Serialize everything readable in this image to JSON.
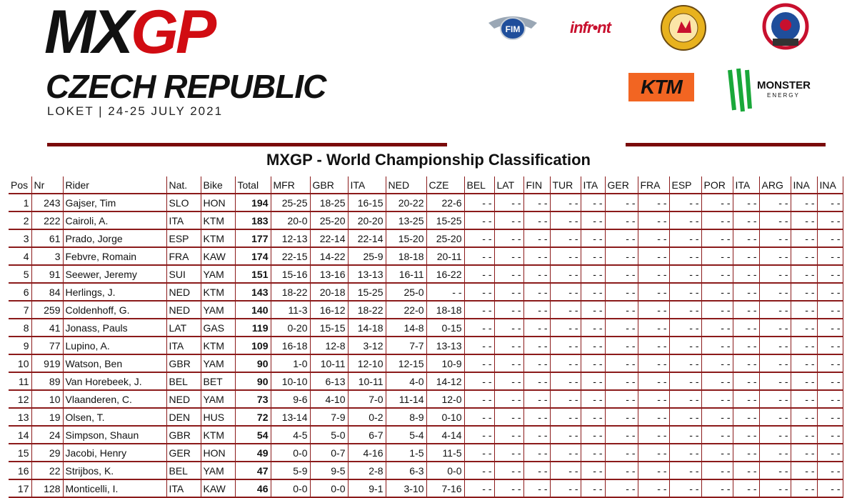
{
  "header": {
    "logo_mx": "MX",
    "logo_gp": "GP",
    "event_title": "CZECH REPUBLIC",
    "event_subtitle": "LOKET | 24-25 JULY 2021",
    "sponsors": [
      "FIM",
      "infront",
      "KTM",
      "Monster Energy"
    ],
    "sponsor_text": {
      "fim": "FIM",
      "infront": "infr•nt",
      "ktm": "KTM",
      "monster": "MONSTER",
      "energy": "ENERGY"
    }
  },
  "table": {
    "title": "MXGP - World Championship Classification",
    "columns": [
      "Pos",
      "Nr",
      "Rider",
      "Nat.",
      "Bike",
      "Total",
      "MFR",
      "GBR",
      "ITA",
      "NED",
      "CZE",
      "BEL",
      "LAT",
      "FIN",
      "TUR",
      "ITA",
      "GER",
      "FRA",
      "ESP",
      "POR",
      "ITA",
      "ARG",
      "INA",
      "INA"
    ],
    "rows": [
      {
        "pos": "1",
        "nr": "243",
        "rider": "Gajser, Tim",
        "nat": "SLO",
        "bike": "HON",
        "total": "194",
        "scores": [
          "25-25",
          "18-25",
          "16-15",
          "20-22",
          "22-6"
        ]
      },
      {
        "pos": "2",
        "nr": "222",
        "rider": "Cairoli, A.",
        "nat": "ITA",
        "bike": "KTM",
        "total": "183",
        "scores": [
          "20-0",
          "25-20",
          "20-20",
          "13-25",
          "15-25"
        ]
      },
      {
        "pos": "3",
        "nr": "61",
        "rider": "Prado, Jorge",
        "nat": "ESP",
        "bike": "KTM",
        "total": "177",
        "scores": [
          "12-13",
          "22-14",
          "22-14",
          "15-20",
          "25-20"
        ]
      },
      {
        "pos": "4",
        "nr": "3",
        "rider": "Febvre, Romain",
        "nat": "FRA",
        "bike": "KAW",
        "total": "174",
        "scores": [
          "22-15",
          "14-22",
          "25-9",
          "18-18",
          "20-11"
        ]
      },
      {
        "pos": "5",
        "nr": "91",
        "rider": "Seewer, Jeremy",
        "nat": "SUI",
        "bike": "YAM",
        "total": "151",
        "scores": [
          "15-16",
          "13-16",
          "13-13",
          "16-11",
          "16-22"
        ]
      },
      {
        "pos": "6",
        "nr": "84",
        "rider": "Herlings, J.",
        "nat": "NED",
        "bike": "KTM",
        "total": "143",
        "scores": [
          "18-22",
          "20-18",
          "15-25",
          "25-0",
          "- -"
        ]
      },
      {
        "pos": "7",
        "nr": "259",
        "rider": "Coldenhoff, G.",
        "nat": "NED",
        "bike": "YAM",
        "total": "140",
        "scores": [
          "11-3",
          "16-12",
          "18-22",
          "22-0",
          "18-18"
        ]
      },
      {
        "pos": "8",
        "nr": "41",
        "rider": "Jonass, Pauls",
        "nat": "LAT",
        "bike": "GAS",
        "total": "119",
        "scores": [
          "0-20",
          "15-15",
          "14-18",
          "14-8",
          "0-15"
        ]
      },
      {
        "pos": "9",
        "nr": "77",
        "rider": "Lupino, A.",
        "nat": "ITA",
        "bike": "KTM",
        "total": "109",
        "scores": [
          "16-18",
          "12-8",
          "3-12",
          "7-7",
          "13-13"
        ]
      },
      {
        "pos": "10",
        "nr": "919",
        "rider": "Watson, Ben",
        "nat": "GBR",
        "bike": "YAM",
        "total": "90",
        "scores": [
          "1-0",
          "10-11",
          "12-10",
          "12-15",
          "10-9"
        ]
      },
      {
        "pos": "11",
        "nr": "89",
        "rider": "Van Horebeek, J.",
        "nat": "BEL",
        "bike": "BET",
        "total": "90",
        "scores": [
          "10-10",
          "6-13",
          "10-11",
          "4-0",
          "14-12"
        ]
      },
      {
        "pos": "12",
        "nr": "10",
        "rider": "Vlaanderen, C.",
        "nat": "NED",
        "bike": "YAM",
        "total": "73",
        "scores": [
          "9-6",
          "4-10",
          "7-0",
          "11-14",
          "12-0"
        ]
      },
      {
        "pos": "13",
        "nr": "19",
        "rider": "Olsen, T.",
        "nat": "DEN",
        "bike": "HUS",
        "total": "72",
        "scores": [
          "13-14",
          "7-9",
          "0-2",
          "8-9",
          "0-10"
        ]
      },
      {
        "pos": "14",
        "nr": "24",
        "rider": "Simpson, Shaun",
        "nat": "GBR",
        "bike": "KTM",
        "total": "54",
        "scores": [
          "4-5",
          "5-0",
          "6-7",
          "5-4",
          "4-14"
        ]
      },
      {
        "pos": "15",
        "nr": "29",
        "rider": "Jacobi, Henry",
        "nat": "GER",
        "bike": "HON",
        "total": "49",
        "scores": [
          "0-0",
          "0-7",
          "4-16",
          "1-5",
          "11-5"
        ]
      },
      {
        "pos": "16",
        "nr": "22",
        "rider": "Strijbos, K.",
        "nat": "BEL",
        "bike": "YAM",
        "total": "47",
        "scores": [
          "5-9",
          "9-5",
          "2-8",
          "6-3",
          "0-0"
        ]
      },
      {
        "pos": "17",
        "nr": "128",
        "rider": "Monticelli, I.",
        "nat": "ITA",
        "bike": "KAW",
        "total": "46",
        "scores": [
          "0-0",
          "0-0",
          "9-1",
          "3-10",
          "7-16"
        ]
      }
    ],
    "empty_cell": "- -"
  },
  "colors": {
    "brand_red": "#d10c12",
    "rule_dark_red": "#8b1a1a",
    "ktm_orange": "#f26522"
  }
}
